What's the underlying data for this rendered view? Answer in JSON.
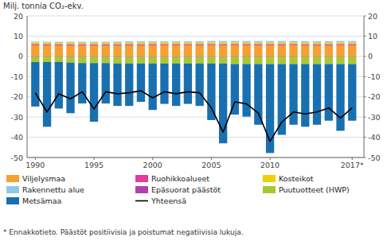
{
  "chart_data": {
    "type": "bar",
    "stacked": true,
    "grid": true,
    "legend": "bottom",
    "y_label": "Milj. tonnia  CO₂-ekv.",
    "annotations": [
      "* Ennakkotieto. Päästöt positiivisia ja poistumat negatiivisia lukuja."
    ],
    "x": [
      1990,
      1991,
      1992,
      1993,
      1994,
      1995,
      1996,
      1997,
      1998,
      1999,
      2000,
      2001,
      2002,
      2003,
      2004,
      2005,
      2006,
      2007,
      2008,
      2009,
      2010,
      2011,
      2012,
      2013,
      2014,
      2015,
      2016,
      2017
    ],
    "xlim": [
      1989.3,
      2018.0
    ],
    "xticks": [
      1990,
      1995,
      2000,
      2005,
      2010,
      {
        "value": 2017,
        "label": "2017*"
      }
    ],
    "ylim": [
      -50,
      20
    ],
    "yticks": [
      -50,
      -40,
      -30,
      -20,
      -10,
      0,
      10,
      20
    ],
    "y2lim": [
      -50,
      20
    ],
    "y2ticks": [
      -50,
      -40,
      -30,
      -20,
      -10,
      0,
      10,
      20
    ],
    "series": [
      {
        "name": "Viljelysmaa",
        "type": "bar",
        "color": "#F5A030",
        "values": [
          5.5,
          5.4,
          5.3,
          5.3,
          5.3,
          5.3,
          5.3,
          5.3,
          5.4,
          5.4,
          5.5,
          5.5,
          5.5,
          5.5,
          5.5,
          5.5,
          5.5,
          5.5,
          5.5,
          5.5,
          5.5,
          5.5,
          5.5,
          5.4,
          5.4,
          5.4,
          5.5,
          5.5
        ]
      },
      {
        "name": "Ruohikkoalueet",
        "type": "bar",
        "color": "#E8389A",
        "values": [
          0.6,
          0.6,
          0.6,
          0.6,
          0.6,
          0.6,
          0.6,
          0.6,
          0.6,
          0.6,
          0.6,
          0.6,
          0.6,
          0.6,
          0.6,
          0.6,
          0.6,
          0.6,
          0.6,
          0.6,
          0.6,
          0.6,
          0.6,
          0.6,
          0.6,
          0.6,
          0.6,
          0.6
        ]
      },
      {
        "name": "Kosteikot",
        "type": "bar",
        "color": "#F0D000",
        "values": [
          0.7,
          0.7,
          0.7,
          0.7,
          0.7,
          0.7,
          0.7,
          0.7,
          0.7,
          0.7,
          0.7,
          0.7,
          0.7,
          0.7,
          0.7,
          0.7,
          0.7,
          0.7,
          0.7,
          0.7,
          0.7,
          0.7,
          0.7,
          0.7,
          0.7,
          0.7,
          0.7,
          0.7
        ]
      },
      {
        "name": "Rakennettu alue",
        "type": "bar",
        "color": "#90C8E8",
        "values": [
          0.5,
          0.5,
          0.6,
          0.6,
          0.6,
          0.6,
          0.6,
          0.7,
          0.7,
          0.7,
          0.7,
          0.7,
          0.7,
          0.7,
          0.7,
          0.8,
          0.8,
          0.8,
          0.8,
          0.8,
          0.8,
          0.8,
          0.8,
          0.8,
          0.8,
          0.8,
          0.8,
          0.8
        ]
      },
      {
        "name": "Epäsuorat päästöt",
        "type": "bar",
        "color": "#B040B0",
        "values": [
          -0.3,
          -0.3,
          -0.3,
          -0.3,
          -0.3,
          -0.3,
          -0.3,
          -0.3,
          -0.3,
          -0.3,
          -0.3,
          -0.3,
          -0.3,
          -0.3,
          -0.3,
          -0.3,
          -0.3,
          -0.3,
          -0.3,
          -0.3,
          -0.3,
          -0.3,
          -0.3,
          -0.3,
          -0.3,
          -0.3,
          -0.3,
          -0.3
        ]
      },
      {
        "name": "Puutuotteet (HWP)",
        "type": "bar",
        "color": "#A8C830",
        "values": [
          -2.5,
          -2.5,
          -2.5,
          -2.8,
          -3.0,
          -3.0,
          -3.0,
          -3.2,
          -3.2,
          -3.2,
          -3.2,
          -3.2,
          -3.2,
          -3.2,
          -3.2,
          -3.2,
          -3.2,
          -3.5,
          -3.5,
          -3.5,
          -3.5,
          -3.5,
          -3.5,
          -3.5,
          -3.5,
          -3.5,
          -3.5,
          -3.5
        ]
      },
      {
        "name": "Metsämaa",
        "type": "bar",
        "color": "#1870B0",
        "values": [
          -22.0,
          -32.0,
          -23.0,
          -25.0,
          -20.0,
          -29.0,
          -20.0,
          -21.0,
          -21.0,
          -19.0,
          -23.0,
          -20.0,
          -21.0,
          -20.0,
          -21.0,
          -28.0,
          -39.5,
          -25.0,
          -26.0,
          -30.0,
          -44.0,
          -35.0,
          -30.0,
          -31.0,
          -30.0,
          -28.0,
          -33.0,
          -28.0
        ]
      },
      {
        "name": "Yhteensä",
        "type": "line",
        "color": "#000000",
        "values": [
          -18.0,
          -27.5,
          -18.5,
          -21.0,
          -17.5,
          -26.0,
          -17.5,
          -18.5,
          -18.0,
          -17.0,
          -20.5,
          -17.5,
          -18.5,
          -17.5,
          -18.0,
          -25.5,
          -37.5,
          -22.5,
          -23.5,
          -28.0,
          -42.0,
          -32.5,
          -27.5,
          -28.5,
          -27.5,
          -25.5,
          -30.5,
          -25.5
        ]
      }
    ]
  }
}
